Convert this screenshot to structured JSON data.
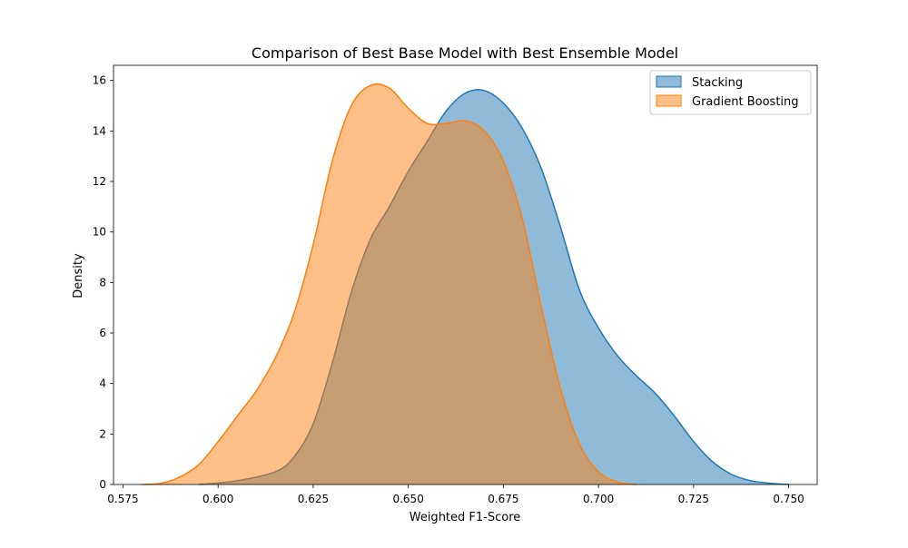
{
  "chart_data": {
    "type": "area",
    "title": "Comparison of Best Base Model with Best Ensemble Model",
    "xlabel": "Weighted F1-Score",
    "ylabel": "Density",
    "xlim": [
      0.5725,
      0.7575
    ],
    "ylim": [
      0,
      16.6
    ],
    "xticks": [
      0.575,
      0.6,
      0.625,
      0.65,
      0.675,
      0.7,
      0.725,
      0.75
    ],
    "xtick_labels": [
      "0.575",
      "0.600",
      "0.625",
      "0.650",
      "0.675",
      "0.700",
      "0.725",
      "0.750"
    ],
    "yticks": [
      0,
      2,
      4,
      6,
      8,
      10,
      12,
      14,
      16
    ],
    "ytick_labels": [
      "0",
      "2",
      "4",
      "6",
      "8",
      "10",
      "12",
      "14",
      "16"
    ],
    "grid": false,
    "legend_position": "top-right",
    "series": [
      {
        "name": "Stacking",
        "line_color": "#1f77b4",
        "fill_color": "#1f77b4",
        "fill_opacity": 0.5,
        "x": [
          0.595,
          0.605,
          0.615,
          0.62,
          0.625,
          0.63,
          0.635,
          0.64,
          0.645,
          0.65,
          0.655,
          0.66,
          0.665,
          0.67,
          0.675,
          0.68,
          0.685,
          0.69,
          0.695,
          0.7,
          0.705,
          0.71,
          0.715,
          0.72,
          0.725,
          0.73,
          0.735,
          0.74,
          0.745,
          0.75
        ],
        "y": [
          0.0,
          0.15,
          0.5,
          1.1,
          2.4,
          4.8,
          7.6,
          9.7,
          11.0,
          12.4,
          13.6,
          14.8,
          15.5,
          15.6,
          15.1,
          14.1,
          12.5,
          10.2,
          7.7,
          6.2,
          5.1,
          4.3,
          3.6,
          2.7,
          1.7,
          0.9,
          0.4,
          0.15,
          0.05,
          0.0
        ]
      },
      {
        "name": "Gradient Boosting",
        "line_color": "#ff7f0e",
        "fill_color": "#ff7f0e",
        "fill_opacity": 0.5,
        "x": [
          0.58,
          0.585,
          0.59,
          0.595,
          0.6,
          0.605,
          0.61,
          0.615,
          0.62,
          0.625,
          0.63,
          0.635,
          0.64,
          0.645,
          0.65,
          0.655,
          0.66,
          0.665,
          0.67,
          0.675,
          0.68,
          0.685,
          0.69,
          0.695,
          0.7,
          0.705,
          0.71
        ],
        "y": [
          0.0,
          0.05,
          0.3,
          0.8,
          1.7,
          2.7,
          3.7,
          5.0,
          6.8,
          9.5,
          12.8,
          15.0,
          15.8,
          15.7,
          14.9,
          14.3,
          14.3,
          14.4,
          14.0,
          12.8,
          10.5,
          7.0,
          3.8,
          1.6,
          0.5,
          0.1,
          0.0
        ]
      }
    ]
  }
}
